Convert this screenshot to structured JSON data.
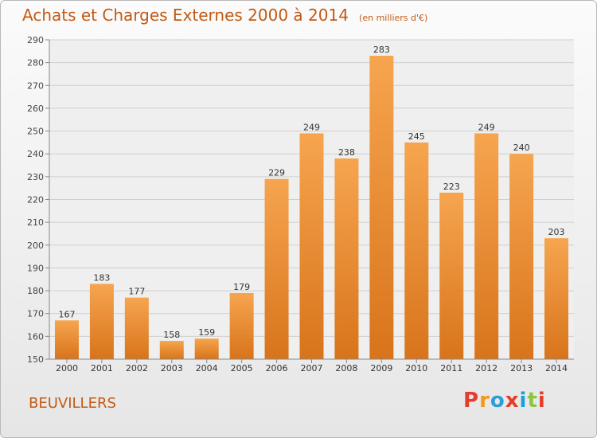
{
  "title": "Achats et Charges Externes 2000 à 2014",
  "subtitle": "(en milliers d'€)",
  "town": "BEUVILLERS",
  "logo": {
    "text": "Proxiti",
    "colors": [
      "#e53d2b",
      "#f39a18",
      "#2c9fd8",
      "#e53d2b",
      "#1aa0d8",
      "#8cc63f",
      "#e53d2b"
    ]
  },
  "colors": {
    "accent": "#c35a14",
    "bar_top": "#f6a54f",
    "bar_bottom": "#d8741b"
  },
  "chart_data": {
    "type": "bar",
    "title": "Achats et Charges Externes 2000 à 2014",
    "xlabel": "",
    "ylabel": "",
    "categories": [
      "2000",
      "2001",
      "2002",
      "2003",
      "2004",
      "2005",
      "2006",
      "2007",
      "2008",
      "2009",
      "2010",
      "2011",
      "2012",
      "2013",
      "2014"
    ],
    "values": [
      167,
      183,
      177,
      158,
      159,
      179,
      229,
      249,
      238,
      283,
      245,
      223,
      249,
      240,
      203
    ],
    "ylim": [
      150,
      290
    ],
    "yticks": [
      150,
      160,
      170,
      180,
      190,
      200,
      210,
      220,
      230,
      240,
      250,
      260,
      270,
      280,
      290
    ],
    "grid": true,
    "legend": "none"
  }
}
